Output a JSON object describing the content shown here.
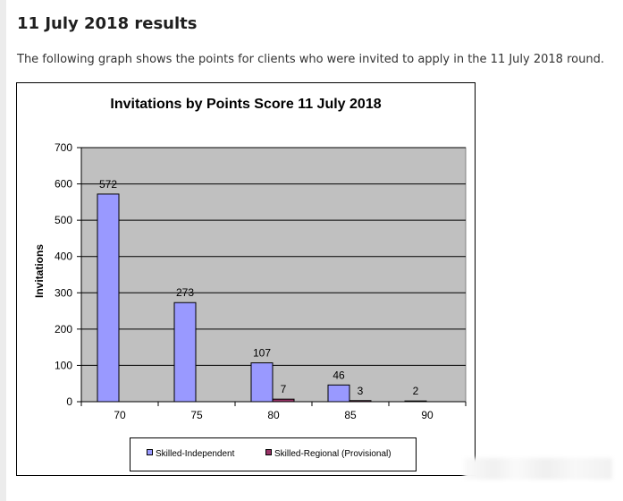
{
  "page": {
    "heading": "11 July 2018 results",
    "intro": "The following graph shows the points for clients who were invited to apply in the 11 July 2018 round."
  },
  "chart_data": {
    "type": "bar",
    "title": "Invitations by Points Score 11 July 2018",
    "xlabel": "",
    "ylabel": "Invitations",
    "ylim": [
      0,
      700
    ],
    "yticks": [
      "0",
      "100",
      "200",
      "300",
      "400",
      "500",
      "600",
      "700"
    ],
    "categories": [
      "70",
      "75",
      "80",
      "85",
      "90"
    ],
    "series": [
      {
        "name": "Skilled-Independent",
        "color": "#9999ff",
        "values": [
          572,
          273,
          107,
          46,
          2
        ],
        "labels": [
          "572",
          "273",
          "107",
          "46",
          "2"
        ]
      },
      {
        "name": "Skilled-Regional (Provisional)",
        "color": "#993366",
        "values": [
          0,
          0,
          7,
          3,
          0
        ],
        "labels": [
          "",
          "",
          "7",
          "3",
          ""
        ]
      }
    ],
    "grid": true,
    "plot_background": "#c0c0c0",
    "legend_position": "bottom"
  }
}
